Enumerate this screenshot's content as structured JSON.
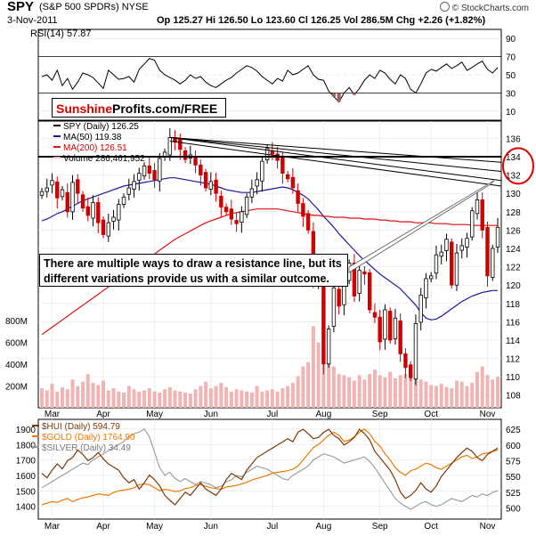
{
  "header": {
    "symbol": "SPY",
    "name": "(S&P 500 SPDRs) NYSE",
    "date": "3-Nov-2011",
    "ohlc": "Op 125.27  Hi 126.50  Lo 123.60  Cl 126.25  Vol 286.5M  Chg +2.26 (+1.82%)",
    "source": "© StockCharts.com"
  },
  "logo": {
    "part1": "Sunshine",
    "part2": "Profits.com/FREE"
  },
  "annotation": "There are multiple ways to draw a resistance line, but its different variations provide us with a similar outcome.",
  "colors": {
    "price_up": "#000000",
    "price_down": "#cc0000",
    "ma50": "#1a1aa0",
    "ma200": "#dd1111",
    "volume": "#f0b4b4",
    "hui": "#7a3a0a",
    "gold": "#f07800",
    "silver": "#999999",
    "highlight_circle": "#e00000"
  },
  "chart_data": [
    {
      "type": "line",
      "title": "RSI(14) 57.87",
      "ylim": [
        0,
        100
      ],
      "y_ticks": [
        90,
        70,
        50,
        30,
        10
      ],
      "values": [
        48,
        50,
        44,
        55,
        38,
        46,
        34,
        42,
        52,
        50,
        47,
        41,
        35,
        55,
        50,
        45,
        46,
        48,
        42,
        56,
        62,
        68,
        66,
        55,
        50,
        47,
        44,
        40,
        44,
        50,
        46,
        48,
        42,
        38,
        36,
        40,
        44,
        47,
        52,
        56,
        60,
        58,
        54,
        48,
        44,
        40,
        46,
        43,
        55,
        50,
        52,
        56,
        60,
        50,
        45,
        44,
        32,
        26,
        20,
        30,
        36,
        28,
        35,
        44,
        50,
        46,
        55,
        52,
        45,
        40,
        50,
        46,
        34,
        30,
        40,
        52,
        56,
        54,
        58,
        62,
        57,
        60,
        64,
        55,
        58,
        62,
        65,
        56,
        52,
        58
      ]
    },
    {
      "type": "line",
      "title": "SPY (Daily) 126.25",
      "x_ticks": [
        "Mar",
        "Apr",
        "May",
        "Jun",
        "Jul",
        "Aug",
        "Sep",
        "Oct",
        "Nov"
      ],
      "y_ticks": [
        136,
        134,
        132,
        130,
        128,
        126,
        124,
        122,
        120,
        118,
        116,
        114,
        112,
        110,
        108
      ],
      "ylim": [
        107,
        137.5
      ],
      "volume_ticks": [
        "800M",
        "600M",
        "400M",
        "200M"
      ],
      "highlighted_levels": [
        134,
        132
      ],
      "series": [
        {
          "name": "SPY (Daily) 126.25",
          "values": [
            130.2,
            130.6,
            131.4,
            129.5,
            130.4,
            128.0,
            131.2,
            130.0,
            128.4,
            127.6,
            129.0,
            126.8,
            125.5,
            126.8,
            127.4,
            128.8,
            129.6,
            130.6,
            131.3,
            132.2,
            133.0,
            132.2,
            131.5,
            133.8,
            134.5,
            136.1,
            135.6,
            134.8,
            133.7,
            134.2,
            133.1,
            132.0,
            130.6,
            131.3,
            130.0,
            128.5,
            128.0,
            127.2,
            126.7,
            128.0,
            129.6,
            130.5,
            131.5,
            133.5,
            134.9,
            134.3,
            133.6,
            132.2,
            131.6,
            130.6,
            128.9,
            127.5,
            126.0,
            120.3,
            121.0,
            111.4,
            115.2,
            119.7,
            117.7,
            120.8,
            122.4,
            118.8,
            121.6,
            121.2,
            117.3,
            116.5,
            113.8,
            117.3,
            114.0,
            116.4,
            112.5,
            111.0,
            109.9,
            115.8,
            118.9,
            120.7,
            121.0,
            123.3,
            123.6,
            125.0,
            120.0,
            123.5,
            124.3,
            125.1,
            128.1,
            129.3,
            126.0,
            121.0,
            124.0,
            126.3
          ]
        },
        {
          "name": "MA(50) 119.38",
          "values": [
            127.0,
            127.2,
            127.5,
            127.8,
            128.0,
            128.3,
            128.6,
            128.9,
            129.2,
            129.4,
            129.6,
            129.8,
            130.0,
            130.2,
            130.4,
            130.6,
            130.8,
            130.9,
            131.0,
            131.1,
            131.2,
            131.3,
            131.4,
            131.5,
            131.6,
            131.7,
            131.7,
            131.6,
            131.5,
            131.4,
            131.3,
            131.2,
            131.1,
            131.0,
            130.8,
            130.6,
            130.4,
            130.3,
            130.2,
            130.1,
            130.1,
            130.1,
            130.2,
            130.3,
            130.4,
            130.5,
            130.6,
            130.7,
            130.6,
            130.4,
            130.1,
            129.8,
            129.4,
            128.8,
            128.2,
            127.5,
            126.9,
            126.3,
            125.6,
            125.0,
            124.4,
            123.8,
            123.2,
            122.7,
            122.2,
            121.7,
            121.2,
            120.8,
            120.4,
            120.0,
            119.6,
            119.0,
            118.4,
            117.8,
            117.0,
            116.4,
            116.2,
            116.3,
            116.6,
            117.0,
            117.4,
            117.8,
            118.2,
            118.5,
            118.8,
            119.0,
            119.2,
            119.3,
            119.4,
            119.4
          ]
        },
        {
          "name": "MA(200) 126.51",
          "values": [
            114.6,
            115.0,
            115.4,
            115.8,
            116.2,
            116.6,
            117.0,
            117.4,
            117.8,
            118.2,
            118.6,
            119.0,
            119.4,
            119.8,
            120.2,
            120.6,
            121.0,
            121.4,
            121.8,
            122.2,
            122.6,
            123.0,
            123.4,
            123.8,
            124.2,
            124.6,
            125.0,
            125.3,
            125.6,
            125.9,
            126.2,
            126.5,
            126.8,
            127.0,
            127.2,
            127.4,
            127.6,
            127.8,
            127.9,
            128.0,
            128.1,
            128.2,
            128.3,
            128.3,
            128.3,
            128.3,
            128.3,
            128.2,
            128.1,
            128.0,
            127.9,
            127.8,
            127.7,
            127.6,
            127.6,
            127.5,
            127.5,
            127.4,
            127.4,
            127.4,
            127.3,
            127.3,
            127.3,
            127.2,
            127.2,
            127.2,
            127.1,
            127.1,
            127.0,
            127.0,
            126.9,
            126.9,
            126.9,
            126.8,
            126.8,
            126.8,
            126.8,
            126.7,
            126.7,
            126.7,
            126.6,
            126.6,
            126.6,
            126.6,
            126.5,
            126.5,
            126.5,
            126.5,
            126.5,
            126.5
          ]
        },
        {
          "name": "Volume 286,461,952",
          "values": [
            180,
            160,
            220,
            150,
            190,
            170,
            260,
            200,
            240,
            310,
            230,
            210,
            250,
            160,
            180,
            150,
            140,
            200,
            170,
            150,
            160,
            180,
            150,
            140,
            170,
            190,
            160,
            150,
            140,
            130,
            170,
            200,
            240,
            180,
            200,
            230,
            190,
            150,
            170,
            160,
            150,
            140,
            200,
            150,
            160,
            170,
            150,
            180,
            200,
            230,
            290,
            380,
            420,
            750,
            600,
            520,
            420,
            380,
            310,
            300,
            280,
            250,
            300,
            260,
            310,
            350,
            300,
            280,
            330,
            270,
            300,
            310,
            340,
            280,
            260,
            240,
            210,
            200,
            220,
            190,
            180,
            250,
            240,
            200,
            230,
            330,
            380,
            300,
            260,
            286
          ]
        }
      ]
    },
    {
      "type": "line",
      "y_ticks_left": [
        1900,
        1800,
        1700,
        1600,
        1500,
        1400
      ],
      "y_ticks_right": [
        625,
        600,
        575,
        550,
        525,
        500
      ],
      "series": [
        {
          "name": "$HUI (Daily) 594.79",
          "values": [
            555,
            548,
            560,
            570,
            562,
            575,
            580,
            592,
            585,
            575,
            580,
            588,
            578,
            570,
            565,
            560,
            548,
            540,
            545,
            530,
            540,
            552,
            545,
            535,
            520,
            512,
            505,
            515,
            525,
            520,
            530,
            540,
            530,
            525,
            520,
            530,
            545,
            555,
            550,
            545,
            560,
            570,
            580,
            585,
            590,
            595,
            600,
            605,
            610,
            605,
            620,
            625,
            618,
            610,
            612,
            620,
            625,
            615,
            610,
            600,
            605,
            612,
            625,
            618,
            608,
            590,
            580,
            570,
            560,
            545,
            525,
            515,
            520,
            528,
            540,
            530,
            525,
            535,
            550,
            560,
            570,
            580,
            588,
            595,
            590,
            580,
            575,
            585,
            590,
            595
          ]
        },
        {
          "name": "$GOLD (Daily) 1764.90",
          "values": [
            1410,
            1420,
            1430,
            1425,
            1440,
            1450,
            1430,
            1445,
            1455,
            1460,
            1470,
            1480,
            1475,
            1470,
            1490,
            1500,
            1505,
            1510,
            1520,
            1540,
            1545,
            1540,
            1520,
            1500,
            1510,
            1505,
            1495,
            1500,
            1515,
            1520,
            1535,
            1540,
            1530,
            1520,
            1515,
            1510,
            1525,
            1530,
            1535,
            1545,
            1555,
            1570,
            1580,
            1590,
            1600,
            1615,
            1620,
            1625,
            1630,
            1640,
            1660,
            1700,
            1740,
            1780,
            1800,
            1830,
            1860,
            1880,
            1860,
            1820,
            1830,
            1850,
            1880,
            1900,
            1870,
            1820,
            1790,
            1740,
            1700,
            1650,
            1620,
            1600,
            1630,
            1640,
            1660,
            1680,
            1670,
            1650,
            1640,
            1660,
            1680,
            1700,
            1720,
            1730,
            1710,
            1720,
            1740,
            1745,
            1755,
            1765
          ]
        },
        {
          "name": "$SILVER (Daily) 34.49",
          "values": [
            1520,
            1540,
            1560,
            1580,
            1600,
            1620,
            1640,
            1660,
            1680,
            1670,
            1700,
            1720,
            1740,
            1760,
            1780,
            1800,
            1820,
            1850,
            1870,
            1880,
            1900,
            1850,
            1750,
            1650,
            1600,
            1620,
            1580,
            1560,
            1580,
            1560,
            1540,
            1560,
            1550,
            1540,
            1520,
            1530,
            1560,
            1570,
            1600,
            1590,
            1620,
            1640,
            1660,
            1650,
            1640,
            1620,
            1600,
            1580,
            1570,
            1600,
            1620,
            1640,
            1660,
            1700,
            1720,
            1740,
            1730,
            1720,
            1700,
            1680,
            1690,
            1700,
            1710,
            1720,
            1690,
            1650,
            1600,
            1550,
            1500,
            1450,
            1420,
            1400,
            1380,
            1400,
            1420,
            1430,
            1410,
            1400,
            1410,
            1430,
            1450,
            1440,
            1430,
            1450,
            1470,
            1460,
            1480,
            1470,
            1490,
            1500
          ]
        }
      ]
    }
  ]
}
